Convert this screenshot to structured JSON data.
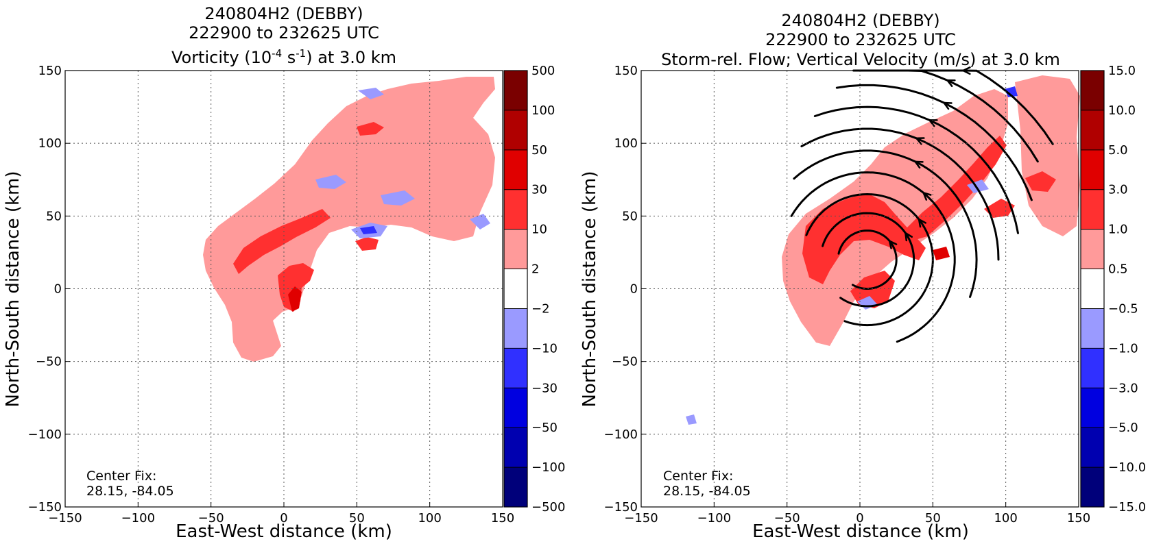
{
  "chart_data": [
    {
      "type": "contour",
      "title_line1": "240804H2 (DEBBY)",
      "title_line2": "222900 to 232625 UTC",
      "title_line3_pre": "Vorticity (10",
      "title_line3_exp1": "-4",
      "title_line3_mid": " s",
      "title_line3_exp2": "-1",
      "title_line3_post": ") at 3.0 km",
      "xlabel": "East-West distance (km)",
      "ylabel": "North-South distance (km)",
      "xlim": [
        -150,
        150
      ],
      "ylim": [
        -150,
        150
      ],
      "xticks": [
        "−150",
        "−100",
        "−50",
        "0",
        "50",
        "100",
        "150"
      ],
      "yticks": [
        "−150",
        "−100",
        "−50",
        "0",
        "50",
        "100",
        "150"
      ],
      "grid": true,
      "colorbar_levels": [
        "500",
        "100",
        "50",
        "30",
        "10",
        "2",
        "−2",
        "−10",
        "−30",
        "−50",
        "−100",
        "−500"
      ],
      "colorbar_colors": [
        "#7a0000",
        "#b00000",
        "#e00000",
        "#ff3030",
        "#ff9a9a",
        "#ffffff",
        "#9a9aff",
        "#3030ff",
        "#0000e0",
        "#0000b0",
        "#00007a"
      ],
      "center_fix_label": "Center Fix:",
      "center_fix_value": "28.15, -84.05"
    },
    {
      "type": "contour",
      "title_line1": "240804H2 (DEBBY)",
      "title_line2": "222900 to 232625 UTC",
      "title_line3": "Storm-rel. Flow; Vertical Velocity (m/s) at 3.0 km",
      "xlabel": "East-West distance (km)",
      "ylabel": "North-South distance (km)",
      "xlim": [
        -150,
        150
      ],
      "ylim": [
        -150,
        150
      ],
      "xticks": [
        "−150",
        "−100",
        "−50",
        "0",
        "50",
        "100",
        "150"
      ],
      "yticks": [
        "−150",
        "−100",
        "−50",
        "0",
        "50",
        "100",
        "150"
      ],
      "grid": true,
      "colorbar_levels": [
        "15.0",
        "10.0",
        "5.0",
        "3.0",
        "1.0",
        "0.5",
        "−0.5",
        "−1.0",
        "−3.0",
        "−5.0",
        "−10.0",
        "−15.0"
      ],
      "colorbar_colors": [
        "#7a0000",
        "#b00000",
        "#e00000",
        "#ff3030",
        "#ff9a9a",
        "#ffffff",
        "#9a9aff",
        "#3030ff",
        "#0000e0",
        "#0000b0",
        "#00007a"
      ],
      "streamlines": "counter-clockwise arcs around center, concentrated in the northeast quadrant",
      "center_fix_label": "Center Fix:",
      "center_fix_value": "28.15, -84.05"
    }
  ]
}
